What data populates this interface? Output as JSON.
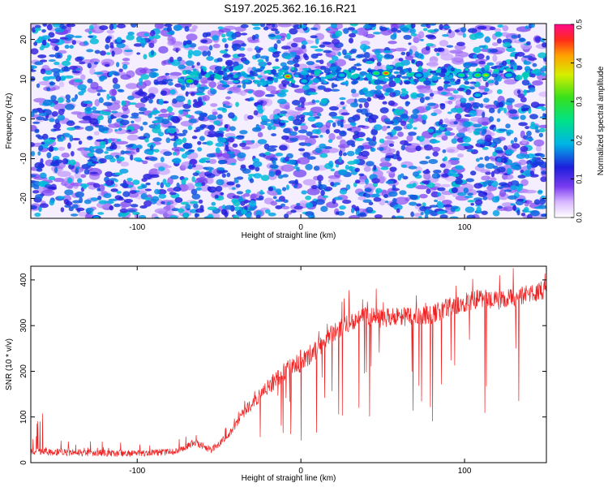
{
  "title": "S197.2025.362.16.16.R21",
  "chart_data": [
    {
      "type": "heatmap",
      "title": "S197.2025.362.16.16.R21",
      "xlabel": "Height of straight line (km)",
      "ylabel": "Frequency (Hz)",
      "xlim": [
        -165,
        150
      ],
      "ylim": [
        -25,
        24
      ],
      "xticks": [
        -100,
        0,
        100
      ],
      "yticks": [
        -20,
        -10,
        0,
        10,
        20
      ],
      "colorbar": {
        "label": "Normalized spectral amplitude",
        "range": [
          0.0,
          0.5
        ],
        "ticks": [
          0.0,
          0.1,
          0.2,
          0.3,
          0.4,
          0.5
        ]
      },
      "features": [
        {
          "description": "horizontal band of elevated amplitude",
          "frequency_hz": 11,
          "x_range_km": [
            -75,
            145
          ]
        }
      ],
      "hotspots": [
        {
          "x": -68,
          "y": 9.5,
          "v": 0.3
        },
        {
          "x": -8,
          "y": 10.7,
          "v": 0.45
        },
        {
          "x": 52,
          "y": 11.5,
          "v": 0.45
        },
        {
          "x": 46,
          "y": 11.5,
          "v": 0.28
        },
        {
          "x": 98,
          "y": 11,
          "v": 0.25
        },
        {
          "x": 108,
          "y": 11,
          "v": 0.3
        },
        {
          "x": 113,
          "y": 11,
          "v": 0.35
        },
        {
          "x": 2,
          "y": 9.5,
          "v": 0.2
        },
        {
          "x": 25,
          "y": 11,
          "v": 0.2
        },
        {
          "x": 127,
          "y": 11,
          "v": 0.22
        },
        {
          "x": 108,
          "y": 6,
          "v": 0.2
        },
        {
          "x": -125,
          "y": -25,
          "v": 0.2
        },
        {
          "x": 72,
          "y": 11,
          "v": 0.2
        }
      ]
    },
    {
      "type": "line",
      "xlabel": "Height of straight line (km)",
      "ylabel": "SNR (10 * v/v)",
      "xlim": [
        -165,
        150
      ],
      "ylim": [
        0,
        430
      ],
      "xticks": [
        -100,
        0,
        100
      ],
      "yticks": [
        0,
        100,
        200,
        300,
        400
      ],
      "color": "#ee2222",
      "trend": {
        "x": [
          -165,
          -140,
          -100,
          -75,
          -65,
          -55,
          -45,
          -35,
          -20,
          -10,
          0,
          10,
          20,
          30,
          40,
          50,
          60,
          70,
          80,
          90,
          100,
          110,
          120,
          130,
          140,
          150
        ],
        "y": [
          25,
          22,
          20,
          25,
          45,
          28,
          55,
          110,
          165,
          200,
          220,
          250,
          285,
          310,
          320,
          315,
          320,
          320,
          325,
          340,
          350,
          360,
          355,
          360,
          370,
          380
        ]
      },
      "noise_amplitude": 30,
      "notes": "Dense noisy signal; low and flat (~20) below -60 km, rising steeply between -45 and 30 km to ~320, then slowly increasing to ~380 at 150 km, with frequent downward spikes."
    }
  ]
}
